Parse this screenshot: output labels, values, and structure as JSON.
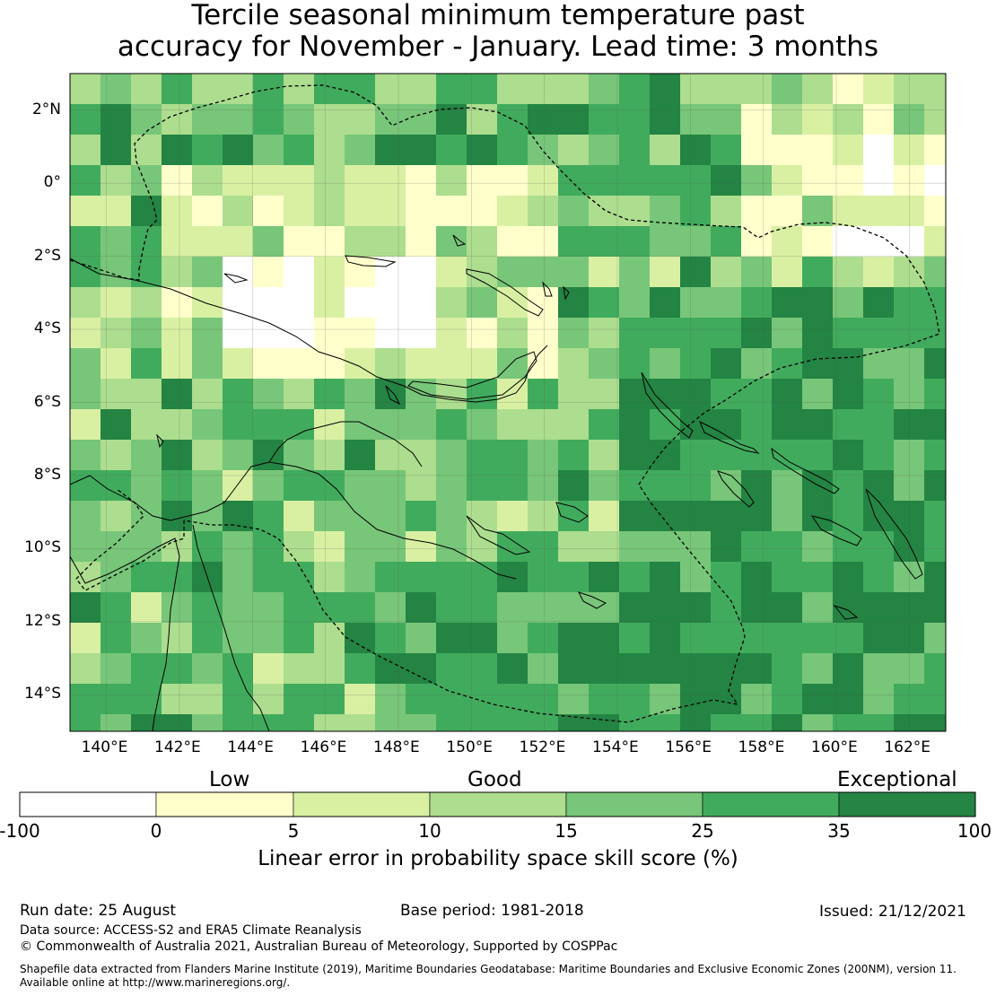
{
  "title": {
    "line1": "Tercile seasonal minimum temperature past",
    "line2": "accuracy for November - January. Lead time: 3 months"
  },
  "map": {
    "lon_ticks": [
      "140°E",
      "142°E",
      "144°E",
      "146°E",
      "148°E",
      "150°E",
      "152°E",
      "154°E",
      "156°E",
      "158°E",
      "160°E",
      "162°E"
    ],
    "lat_ticks": [
      "2°N",
      "0°",
      "2°S",
      "4°S",
      "6°S",
      "8°S",
      "10°S",
      "12°S",
      "14°S"
    ],
    "extent": {
      "lon_min": 139.0,
      "lon_max": 163.0,
      "lat_min": -15.0,
      "lat_max": 3.0
    },
    "grid_resolution_deg": 0.833,
    "colors": {
      "white": "#ffffff",
      "pale_yellow": "#ffffcc",
      "light_yellow_green": "#d9f0a3",
      "light_green": "#addd8e",
      "medium_green": "#78c679",
      "green": "#41ab5d",
      "dark_green": "#238443"
    }
  },
  "colorbar": {
    "category_labels": [
      "Low",
      "Good",
      "Exceptional"
    ],
    "ticks": [
      "-100",
      "0",
      "5",
      "10",
      "15",
      "25",
      "35",
      "100"
    ],
    "colors": [
      "#ffffff",
      "#ffffcc",
      "#d9f0a3",
      "#addd8e",
      "#78c679",
      "#41ab5d",
      "#238443"
    ],
    "label": "Linear error in probability space skill score (%)"
  },
  "footer": {
    "run_date": "Run date: 25 August",
    "base_period": "Base period: 1981-2018",
    "issued": "Issued: 21/12/2021",
    "data_source": "Data source: ACCESS-S2 and ERA5 Climate Reanalysis",
    "copyright": "© Commonwealth of Australia 2021, Australian Bureau of Meteorology, Supported by COSPPac",
    "shapefile_line1": "Shapefile data extracted from Flanders Marine Institute (2019), Maritime Boundaries Geodatabase: Maritime Boundaries and Exclusive Economic Zones (200NM), version 11.",
    "shapefile_line2": "Available online at http://www.marineregions.org/."
  }
}
